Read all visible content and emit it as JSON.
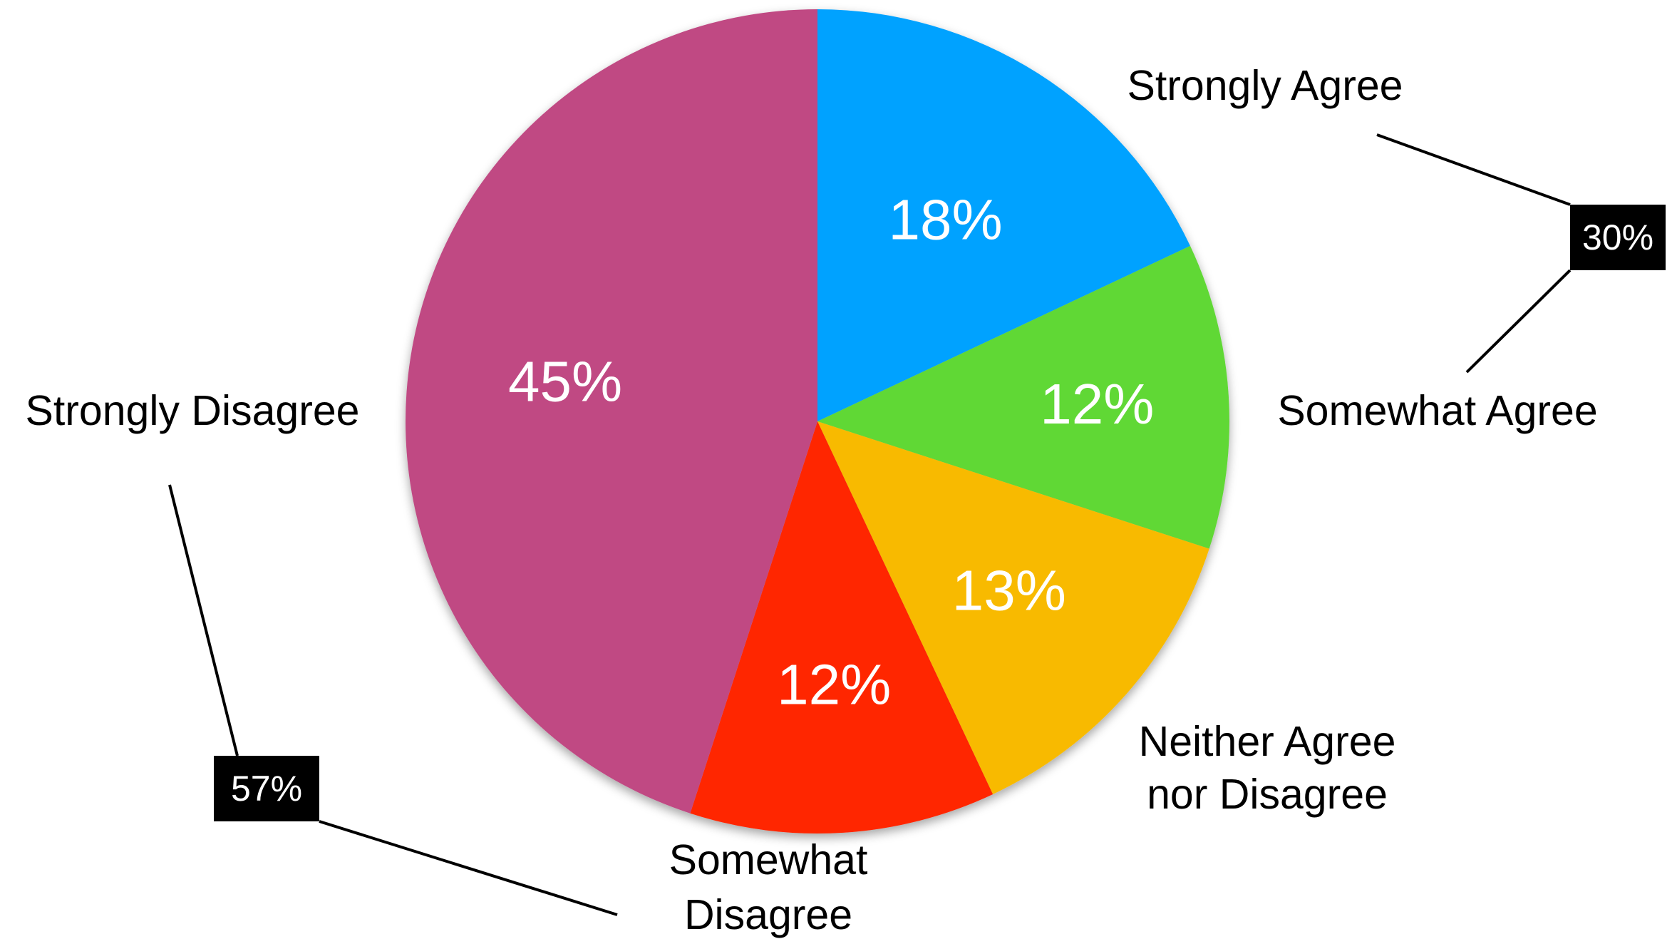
{
  "chart_data": {
    "type": "pie",
    "title": "",
    "start_angle_deg": 0,
    "direction": "clockwise",
    "slices": [
      {
        "label": "Strongly Agree",
        "label_lines": [
          "Strongly Agree"
        ],
        "value": 18,
        "display": "18%",
        "color": "#00A2FF"
      },
      {
        "label": "Somewhat Agree",
        "label_lines": [
          "Somewhat Agree"
        ],
        "value": 12,
        "display": "12%",
        "color": "#61D836"
      },
      {
        "label": "Neither Agree nor Disagree",
        "label_lines": [
          "Neither Agree",
          "nor Disagree"
        ],
        "value": 13,
        "display": "13%",
        "color": "#F8BA00"
      },
      {
        "label": "Somewhat Disagree",
        "label_lines": [
          "Somewhat",
          "Disagree"
        ],
        "value": 12,
        "display": "12%",
        "color": "#FF2600"
      },
      {
        "label": "Strongly Disagree",
        "label_lines": [
          "Strongly Disagree"
        ],
        "value": 45,
        "display": "45%",
        "color": "#C04A83"
      }
    ],
    "group_annotations": [
      {
        "display": "30%",
        "groups": [
          "Strongly Agree",
          "Somewhat Agree"
        ]
      },
      {
        "display": "57%",
        "groups": [
          "Strongly Disagree",
          "Somewhat Disagree"
        ]
      }
    ],
    "legend": "none",
    "colors": {
      "background": "#FFFFFF",
      "annotation_box": "#000000",
      "annotation_text": "#FFFFFF",
      "label_text": "#000000",
      "percent_text": "#FFFFFF"
    }
  }
}
